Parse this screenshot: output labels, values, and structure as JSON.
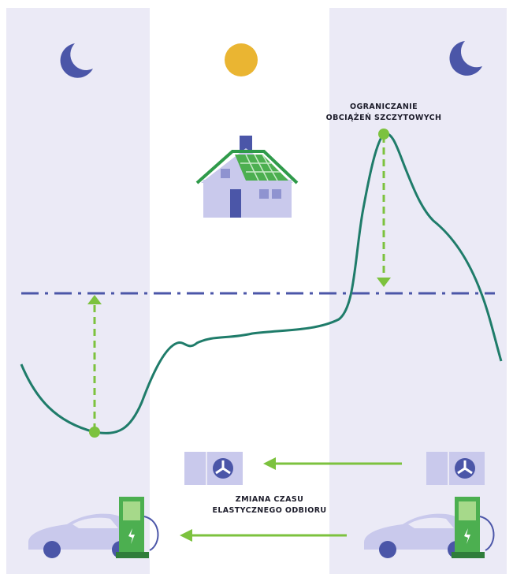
{
  "labels": {
    "peak": [
      "OGRANICZANIE",
      "OBCIĄŻEŃ SZCZYTOWYCH"
    ],
    "shift": [
      "ZMIANA CZASU",
      "ELASTYCZNEGO ODBIORU"
    ]
  }
}
